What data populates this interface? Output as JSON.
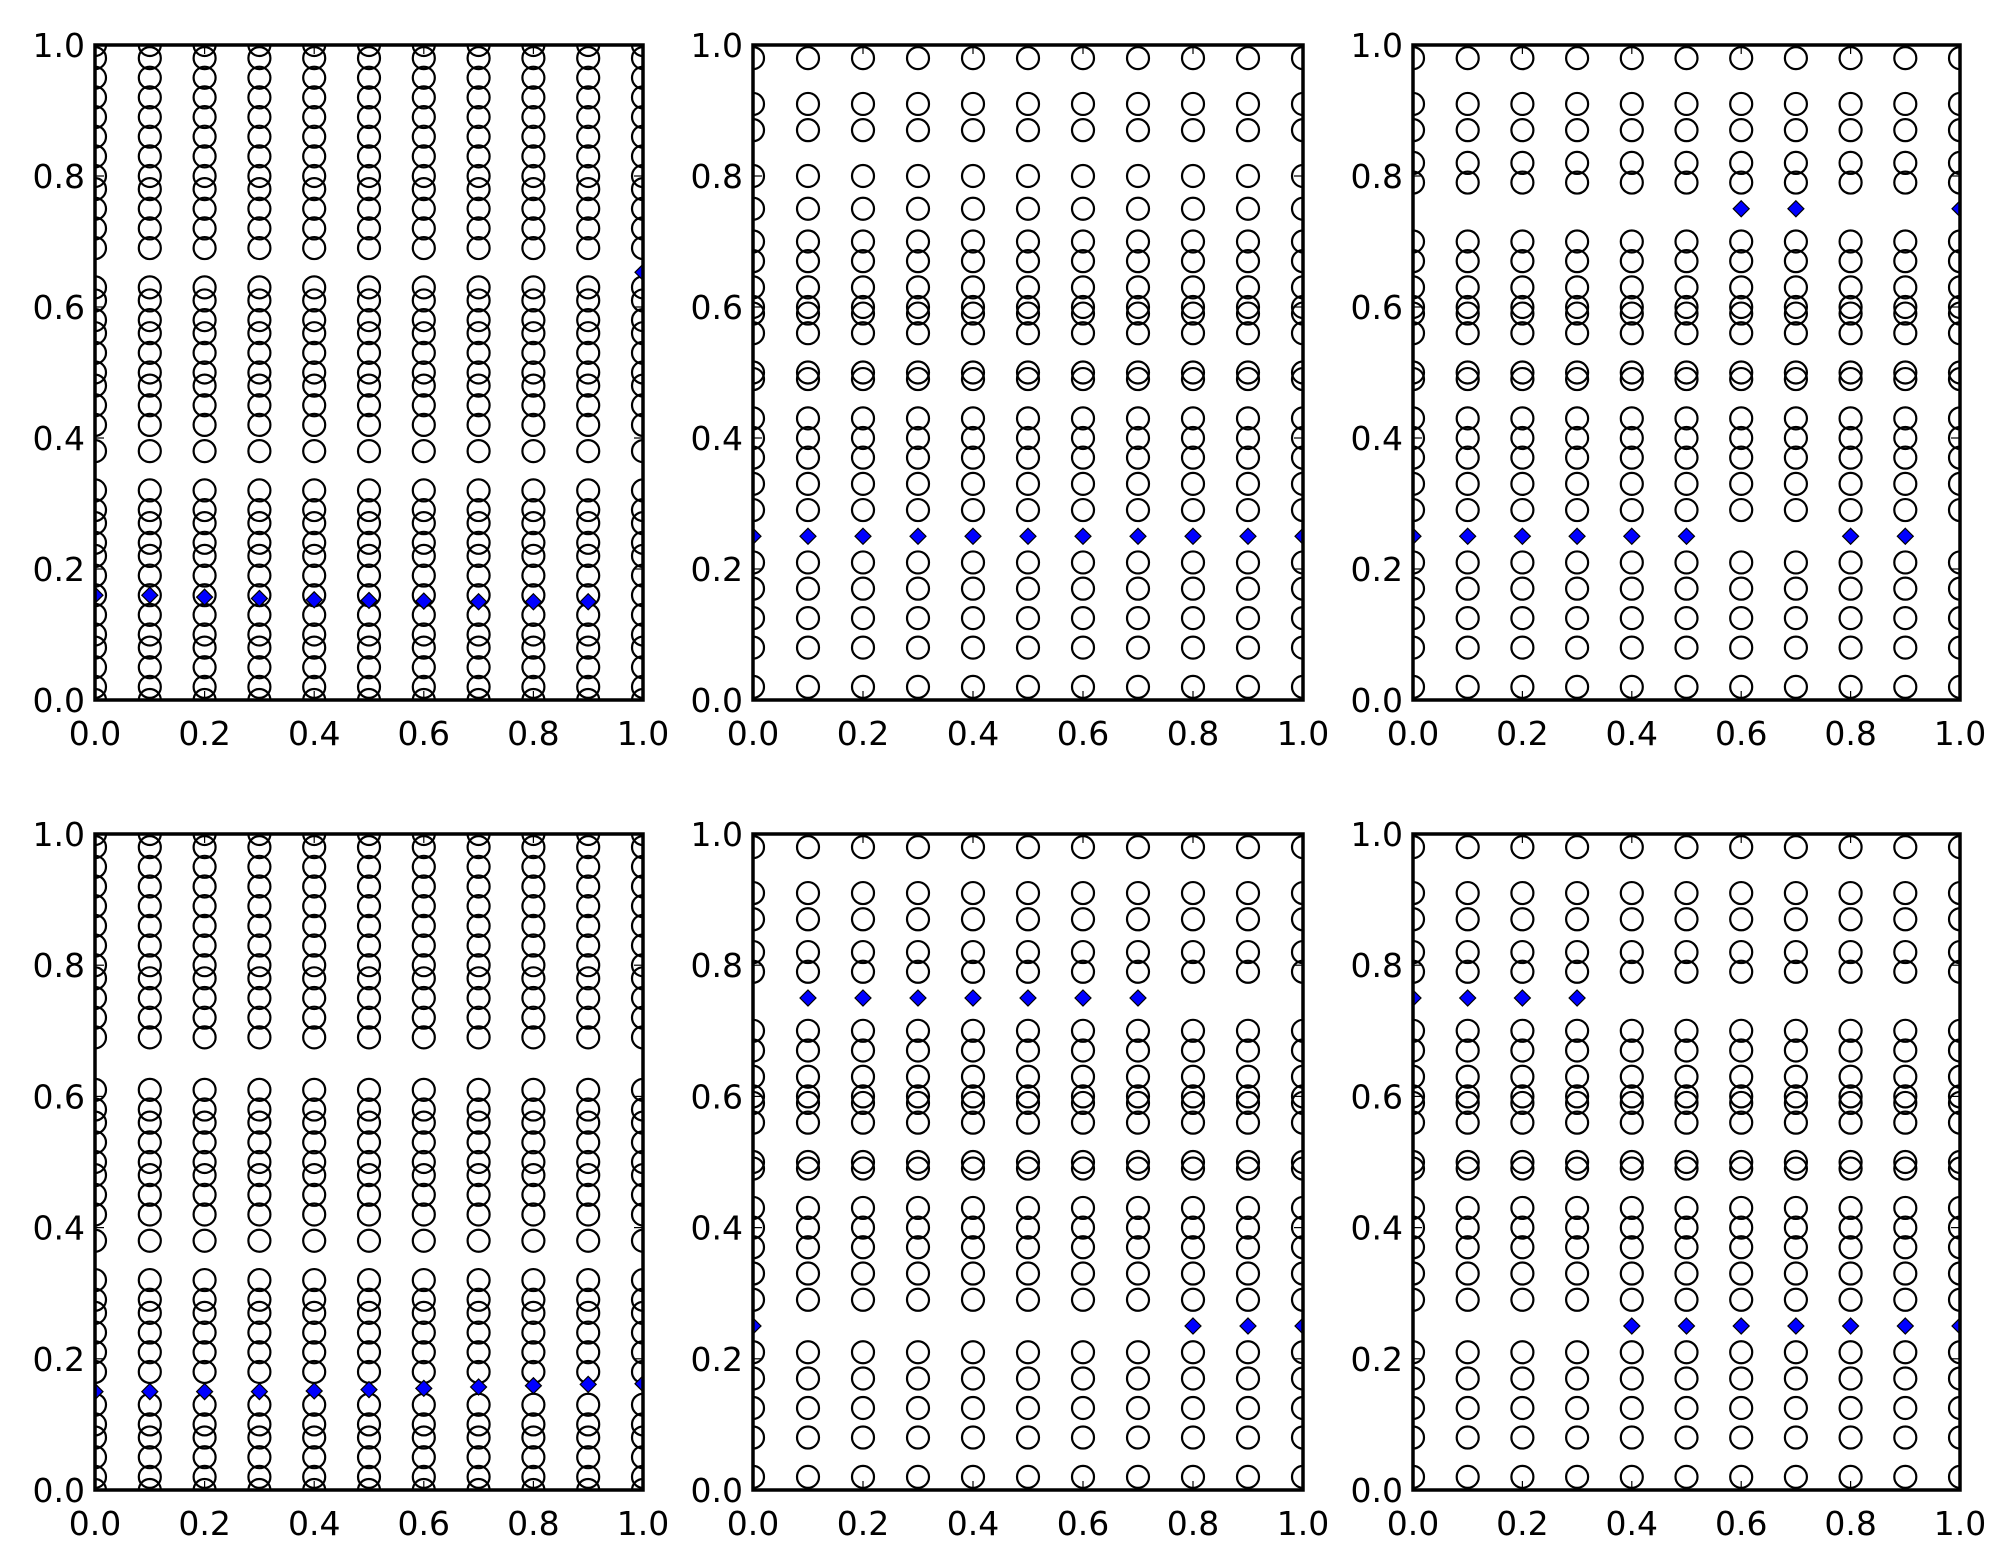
{
  "colors": {
    "circle_edge": "#000000",
    "diamond_fill": "#0000ff",
    "background": "#ffffff"
  },
  "chart_data": [
    {
      "type": "scatter",
      "panel": 1,
      "x_columns": [
        0.0,
        0.1,
        0.2,
        0.3,
        0.4,
        0.5,
        0.6,
        0.7,
        0.8,
        0.9,
        1.0
      ],
      "circle_y_levels": [
        0.0,
        0.02,
        0.05,
        0.08,
        0.1,
        0.13,
        0.16,
        0.19,
        0.22,
        0.24,
        0.27,
        0.29,
        0.32,
        0.38,
        0.42,
        0.45,
        0.48,
        0.5,
        0.53,
        0.56,
        0.58,
        0.61,
        0.63,
        0.69,
        0.72,
        0.75,
        0.78,
        0.8,
        0.83,
        0.86,
        0.89,
        0.92,
        0.95,
        0.98,
        1.0
      ],
      "diamonds": {
        "x": [
          0.0,
          0.1,
          0.2,
          0.3,
          0.4,
          0.5,
          0.6,
          0.7,
          0.8,
          0.9,
          1.0
        ],
        "y": [
          0.16,
          0.16,
          0.157,
          0.155,
          0.153,
          0.152,
          0.151,
          0.15,
          0.15,
          0.15,
          0.653
        ]
      },
      "xlim": [
        0.0,
        1.0
      ],
      "ylim": [
        0.0,
        1.0
      ],
      "xticks": [
        "0.0",
        "0.2",
        "0.4",
        "0.6",
        "0.8",
        "1.0"
      ],
      "yticks": [
        "0.0",
        "0.2",
        "0.4",
        "0.6",
        "0.8",
        "1.0"
      ],
      "grid": false
    },
    {
      "type": "scatter",
      "panel": 2,
      "x_columns": [
        0.0,
        0.1,
        0.2,
        0.3,
        0.4,
        0.5,
        0.6,
        0.7,
        0.8,
        0.9,
        1.0
      ],
      "circle_y_levels": [
        0.02,
        0.08,
        0.125,
        0.17,
        0.21,
        0.29,
        0.33,
        0.37,
        0.4,
        0.43,
        0.49,
        0.5,
        0.56,
        0.59,
        0.6,
        0.63,
        0.67,
        0.7,
        0.75,
        0.8,
        0.87,
        0.91,
        0.98
      ],
      "diamonds": {
        "x": [
          0.0,
          0.1,
          0.2,
          0.3,
          0.4,
          0.5,
          0.6,
          0.7,
          0.8,
          0.9,
          1.0
        ],
        "y": [
          0.25,
          0.25,
          0.25,
          0.25,
          0.25,
          0.25,
          0.25,
          0.25,
          0.25,
          0.25,
          0.25
        ]
      },
      "xlim": [
        0.0,
        1.0
      ],
      "ylim": [
        0.0,
        1.0
      ],
      "xticks": [
        "0.0",
        "0.2",
        "0.4",
        "0.6",
        "0.8",
        "1.0"
      ],
      "yticks": [
        "0.0",
        "0.2",
        "0.4",
        "0.6",
        "0.8",
        "1.0"
      ],
      "grid": false
    },
    {
      "type": "scatter",
      "panel": 3,
      "x_columns": [
        0.0,
        0.1,
        0.2,
        0.3,
        0.4,
        0.5,
        0.6,
        0.7,
        0.8,
        0.9,
        1.0
      ],
      "circle_y_levels": [
        0.02,
        0.08,
        0.125,
        0.17,
        0.21,
        0.29,
        0.33,
        0.37,
        0.4,
        0.43,
        0.49,
        0.5,
        0.56,
        0.59,
        0.6,
        0.63,
        0.67,
        0.7,
        0.79,
        0.82,
        0.87,
        0.91,
        0.98
      ],
      "diamonds": {
        "x": [
          0.0,
          0.1,
          0.2,
          0.3,
          0.4,
          0.5,
          0.6,
          0.7,
          0.8,
          0.9,
          1.0
        ],
        "y": [
          0.25,
          0.25,
          0.25,
          0.25,
          0.25,
          0.25,
          0.75,
          0.75,
          0.25,
          0.25,
          0.75
        ]
      },
      "xlim": [
        0.0,
        1.0
      ],
      "ylim": [
        0.0,
        1.0
      ],
      "xticks": [
        "0.0",
        "0.2",
        "0.4",
        "0.6",
        "0.8",
        "1.0"
      ],
      "yticks": [
        "0.0",
        "0.2",
        "0.4",
        "0.6",
        "0.8",
        "1.0"
      ],
      "grid": false
    },
    {
      "type": "scatter",
      "panel": 4,
      "x_columns": [
        0.0,
        0.1,
        0.2,
        0.3,
        0.4,
        0.5,
        0.6,
        0.7,
        0.8,
        0.9,
        1.0
      ],
      "circle_y_levels": [
        0.0,
        0.02,
        0.05,
        0.08,
        0.1,
        0.13,
        0.18,
        0.21,
        0.24,
        0.27,
        0.29,
        0.32,
        0.38,
        0.42,
        0.45,
        0.48,
        0.5,
        0.53,
        0.56,
        0.58,
        0.61,
        0.69,
        0.72,
        0.75,
        0.78,
        0.8,
        0.83,
        0.86,
        0.89,
        0.92,
        0.95,
        0.98,
        1.0
      ],
      "diamonds": {
        "x": [
          0.0,
          0.1,
          0.2,
          0.3,
          0.4,
          0.5,
          0.6,
          0.7,
          0.8,
          0.9,
          1.0
        ],
        "y": [
          0.15,
          0.15,
          0.15,
          0.15,
          0.151,
          0.153,
          0.155,
          0.157,
          0.159,
          0.161,
          0.162
        ]
      },
      "xlim": [
        0.0,
        1.0
      ],
      "ylim": [
        0.0,
        1.0
      ],
      "xticks": [
        "0.0",
        "0.2",
        "0.4",
        "0.6",
        "0.8",
        "1.0"
      ],
      "yticks": [
        "0.0",
        "0.2",
        "0.4",
        "0.6",
        "0.8",
        "1.0"
      ],
      "grid": false
    },
    {
      "type": "scatter",
      "panel": 5,
      "x_columns": [
        0.0,
        0.1,
        0.2,
        0.3,
        0.4,
        0.5,
        0.6,
        0.7,
        0.8,
        0.9,
        1.0
      ],
      "circle_y_levels": [
        0.02,
        0.08,
        0.125,
        0.17,
        0.21,
        0.29,
        0.33,
        0.37,
        0.4,
        0.43,
        0.49,
        0.5,
        0.56,
        0.59,
        0.6,
        0.63,
        0.67,
        0.7,
        0.79,
        0.82,
        0.87,
        0.91,
        0.98
      ],
      "diamonds": {
        "x": [
          0.0,
          0.1,
          0.2,
          0.3,
          0.4,
          0.5,
          0.6,
          0.7,
          0.8,
          0.9,
          1.0
        ],
        "y": [
          0.25,
          0.75,
          0.75,
          0.75,
          0.75,
          0.75,
          0.75,
          0.75,
          0.25,
          0.25,
          0.25
        ]
      },
      "xlim": [
        0.0,
        1.0
      ],
      "ylim": [
        0.0,
        1.0
      ],
      "xticks": [
        "0.0",
        "0.2",
        "0.4",
        "0.6",
        "0.8",
        "1.0"
      ],
      "yticks": [
        "0.0",
        "0.2",
        "0.4",
        "0.6",
        "0.8",
        "1.0"
      ],
      "grid": false
    },
    {
      "type": "scatter",
      "panel": 6,
      "x_columns": [
        0.0,
        0.1,
        0.2,
        0.3,
        0.4,
        0.5,
        0.6,
        0.7,
        0.8,
        0.9,
        1.0
      ],
      "circle_y_levels": [
        0.02,
        0.08,
        0.125,
        0.17,
        0.21,
        0.29,
        0.33,
        0.37,
        0.4,
        0.43,
        0.49,
        0.5,
        0.56,
        0.59,
        0.6,
        0.63,
        0.67,
        0.7,
        0.79,
        0.82,
        0.87,
        0.91,
        0.98
      ],
      "diamonds": {
        "x": [
          0.0,
          0.1,
          0.2,
          0.3,
          0.4,
          0.5,
          0.6,
          0.7,
          0.8,
          0.9,
          1.0
        ],
        "y": [
          0.75,
          0.75,
          0.75,
          0.75,
          0.25,
          0.25,
          0.25,
          0.25,
          0.25,
          0.25,
          0.25
        ]
      },
      "xlim": [
        0.0,
        1.0
      ],
      "ylim": [
        0.0,
        1.0
      ],
      "xticks": [
        "0.0",
        "0.2",
        "0.4",
        "0.6",
        "0.8",
        "1.0"
      ],
      "yticks": [
        "0.0",
        "0.2",
        "0.4",
        "0.6",
        "0.8",
        "1.0"
      ],
      "grid": false
    }
  ]
}
